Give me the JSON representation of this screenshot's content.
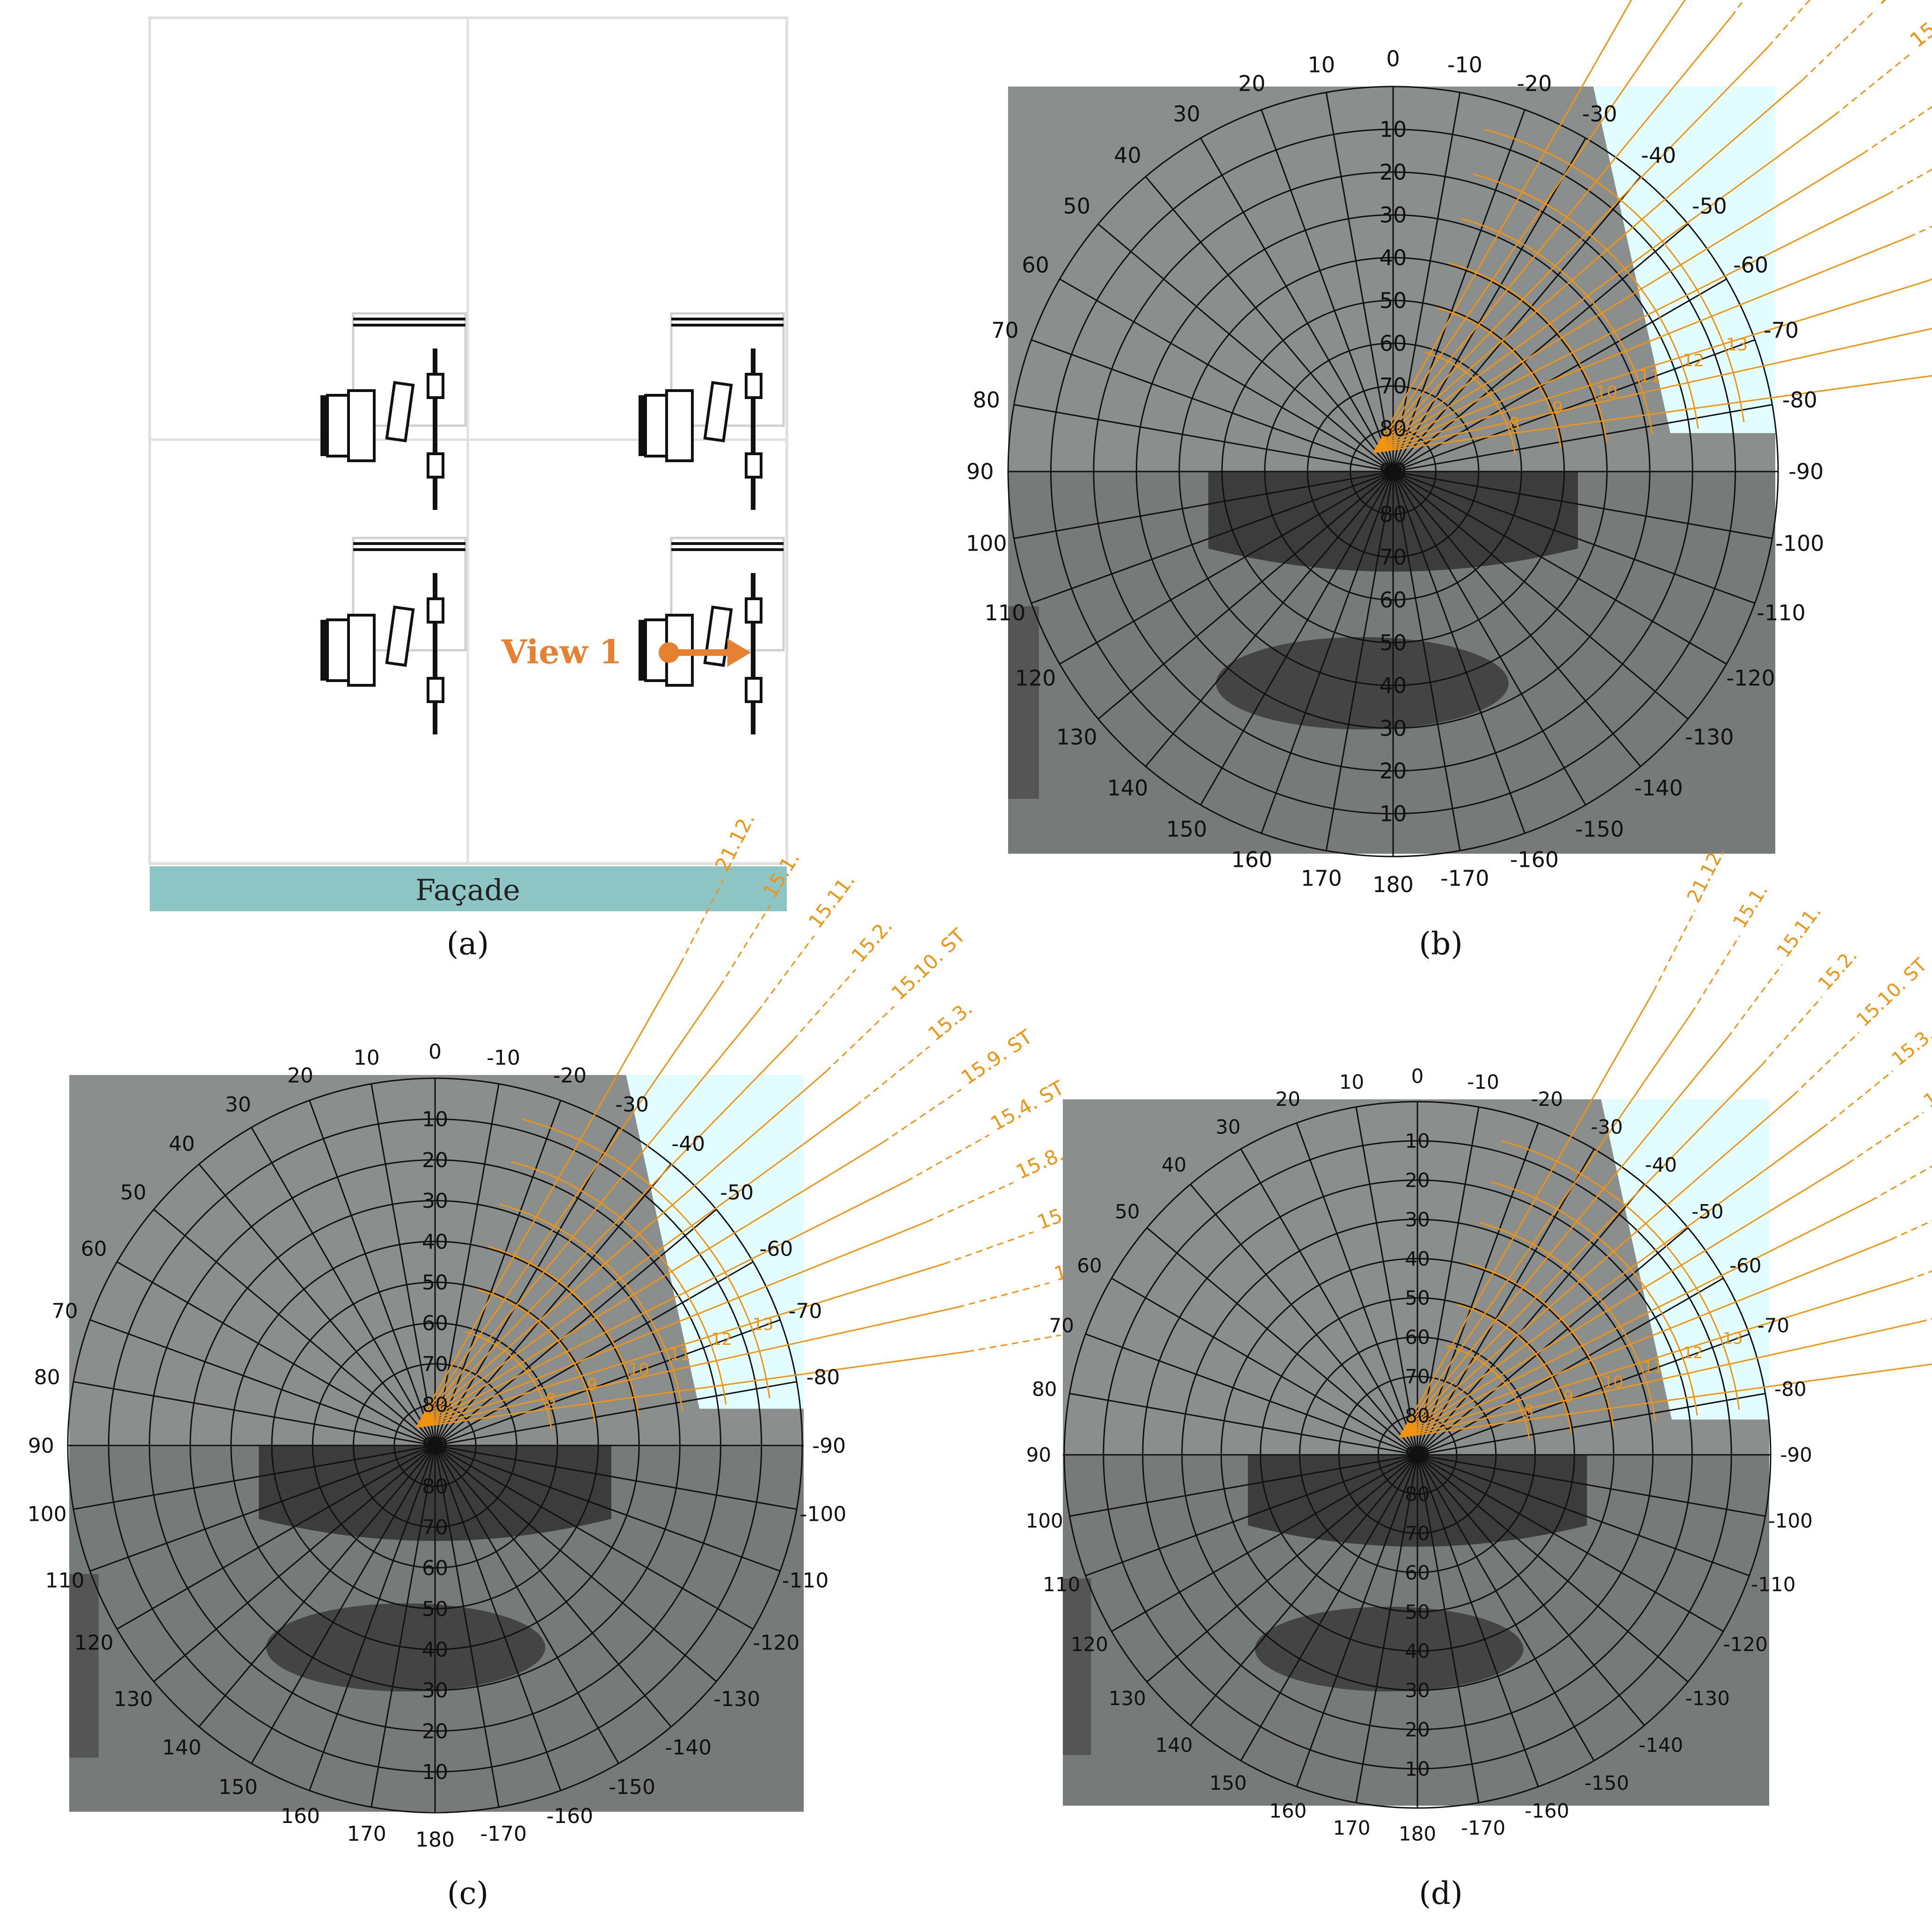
{
  "panels": {
    "a": {
      "caption": "(a)",
      "facade_label": "Façade",
      "view_label": "View 1"
    },
    "b": {
      "caption": "(b)"
    },
    "c": {
      "caption": "(c)"
    },
    "d": {
      "caption": "(d)"
    }
  },
  "polar_grid": {
    "top_labels": [
      "0",
      "10",
      "20",
      "30",
      "40",
      "50",
      "60",
      "70",
      "80",
      "90",
      "100",
      "110",
      "120",
      "130",
      "140",
      "150",
      "160",
      "170",
      "180",
      "-10",
      "-20",
      "-30",
      "-40",
      "-50",
      "-60",
      "-70",
      "-80",
      "-90",
      "-100",
      "-110",
      "-120",
      "-130",
      "-140",
      "-150",
      "-160",
      "-170"
    ],
    "upper_ring_labels": [
      "10",
      "20",
      "30",
      "40",
      "50",
      "60",
      "70",
      "80",
      "90"
    ],
    "lower_ring_labels": [
      "80",
      "70",
      "60",
      "50",
      "40",
      "30",
      "20",
      "10"
    ]
  },
  "sunpath_labels": [
    "21.6. ST",
    "15.7. ST",
    "15.5. ST",
    "15.8. ST",
    "15.4. ST",
    "15.9. ST",
    "15.3.",
    "15.10. ST",
    "15.2.",
    "15.11.",
    "15.1.",
    "21.12."
  ],
  "hour_labels": [
    "8",
    "9",
    "10",
    "11",
    "12",
    "13"
  ],
  "colors": {
    "orange": "#f0940f",
    "teal": "#8cc5c3",
    "sky": "#e2fdff",
    "floor": "#767b7a",
    "dark": "#3c3c3c",
    "grid": "#111111"
  }
}
